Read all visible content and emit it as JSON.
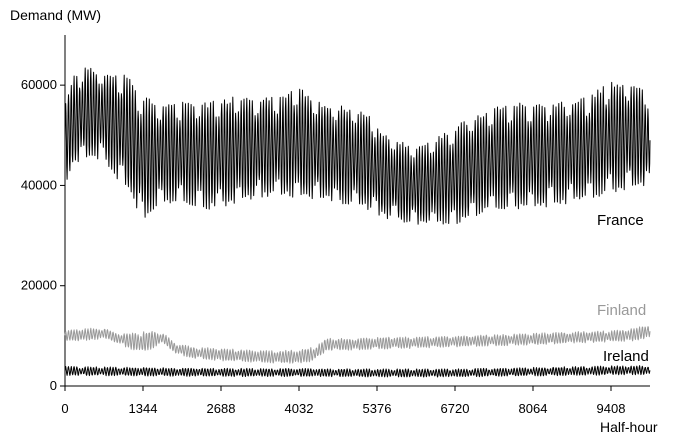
{
  "chart_data": {
    "type": "line",
    "title": "",
    "ylabel": "Demand (MW)",
    "xlabel": "Half-hour",
    "xlim": [
      0,
      10080
    ],
    "ylim": [
      0,
      70000
    ],
    "x_ticks": [
      0,
      1344,
      2688,
      4032,
      5376,
      6720,
      8064,
      9408
    ],
    "y_ticks": [
      0,
      20000,
      40000,
      60000
    ],
    "grid": false,
    "legend": "none",
    "series": [
      {
        "name": "France",
        "color": "#000000",
        "envelope": {
          "x": [
            0,
            150,
            350,
            650,
            900,
            1100,
            1344,
            1700,
            2100,
            2500,
            2900,
            3300,
            3700,
            4032,
            4400,
            4800,
            5200,
            5376,
            5600,
            6000,
            6300,
            6720,
            7000,
            7400,
            8064,
            8600,
            9000,
            9408,
            9800,
            10080
          ],
          "max": [
            57000,
            62000,
            64000,
            63000,
            63000,
            62000,
            58000,
            57000,
            57000,
            57000,
            58000,
            58000,
            58000,
            60000,
            57000,
            56000,
            55000,
            52000,
            50000,
            48000,
            49000,
            52000,
            54000,
            56000,
            57000,
            57000,
            58000,
            61000,
            61000,
            58000
          ],
          "min": [
            40000,
            44000,
            45000,
            45000,
            41000,
            38000,
            33000,
            36000,
            36000,
            35000,
            36000,
            37000,
            38000,
            37000,
            37000,
            36000,
            35000,
            34000,
            33000,
            32000,
            32000,
            32000,
            33000,
            35000,
            35000,
            36000,
            37000,
            38000,
            39000,
            40000
          ]
        }
      },
      {
        "name": "Finland",
        "color": "#999999",
        "envelope": {
          "x": [
            0,
            300,
            700,
            900,
            1100,
            1344,
            1500,
            1700,
            1900,
            2200,
            2688,
            3100,
            3600,
            4032,
            4300,
            4500,
            5000,
            5376,
            6000,
            6720,
            7400,
            8064,
            8700,
            9408,
            9800,
            10080
          ],
          "max": [
            11000,
            11500,
            11500,
            10500,
            10500,
            10800,
            11000,
            10500,
            8500,
            7800,
            7500,
            7200,
            7000,
            7200,
            7800,
            9500,
            9500,
            9700,
            9800,
            10000,
            10200,
            10500,
            10800,
            11000,
            11500,
            12500
          ],
          "min": [
            9000,
            9000,
            9500,
            8500,
            7500,
            6500,
            7500,
            8500,
            6500,
            5500,
            5000,
            4800,
            4500,
            4500,
            5000,
            7000,
            7200,
            7300,
            7500,
            7800,
            8000,
            8200,
            8500,
            8800,
            9000,
            9500
          ]
        }
      },
      {
        "name": "Ireland",
        "color": "#000000",
        "envelope": {
          "x": [
            0,
            1344,
            2688,
            4032,
            5376,
            6720,
            8064,
            9408,
            10080
          ],
          "max": [
            3900,
            3700,
            3500,
            3500,
            3400,
            3400,
            3700,
            4000,
            4100
          ],
          "min": [
            2100,
            2000,
            1900,
            1900,
            1800,
            1800,
            2000,
            2200,
            2300
          ]
        }
      }
    ]
  }
}
